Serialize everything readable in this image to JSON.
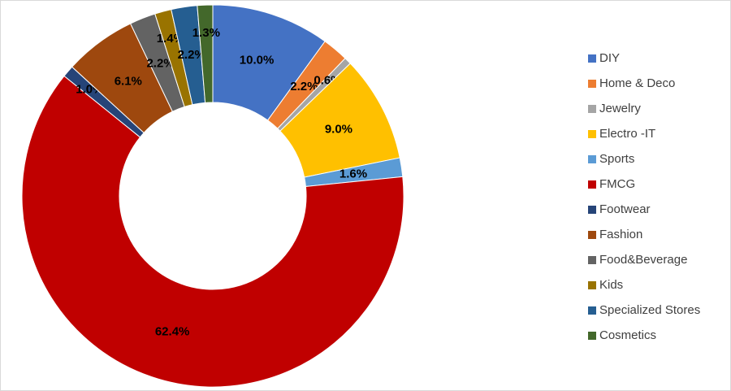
{
  "chart_data": {
    "type": "donut",
    "categories": [
      "DIY",
      "Home & Deco",
      "Jewelry",
      "Electro -IT",
      "Sports",
      "FMCG",
      "Footwear",
      "Fashion",
      "Food&Beverage",
      "Kids",
      "Specialized Stores",
      "Cosmetics"
    ],
    "values": [
      10.0,
      2.2,
      0.6,
      9.0,
      1.6,
      62.4,
      1.0,
      6.1,
      2.2,
      1.4,
      2.2,
      1.3
    ],
    "value_labels": [
      "10.0%",
      "2.2%",
      "0.6%",
      "9.0%",
      "1.6%",
      "62.4%",
      "1.0%",
      "6.1%",
      "2.2%",
      "1.4%",
      "2.2%",
      "1.3%"
    ],
    "colors": [
      "#4472c4",
      "#ed7d31",
      "#a5a5a5",
      "#ffc000",
      "#5b9bd5",
      "#c00000",
      "#264478",
      "#9e480e",
      "#636363",
      "#997300",
      "#255e91",
      "#43682b"
    ],
    "legend": "right"
  }
}
